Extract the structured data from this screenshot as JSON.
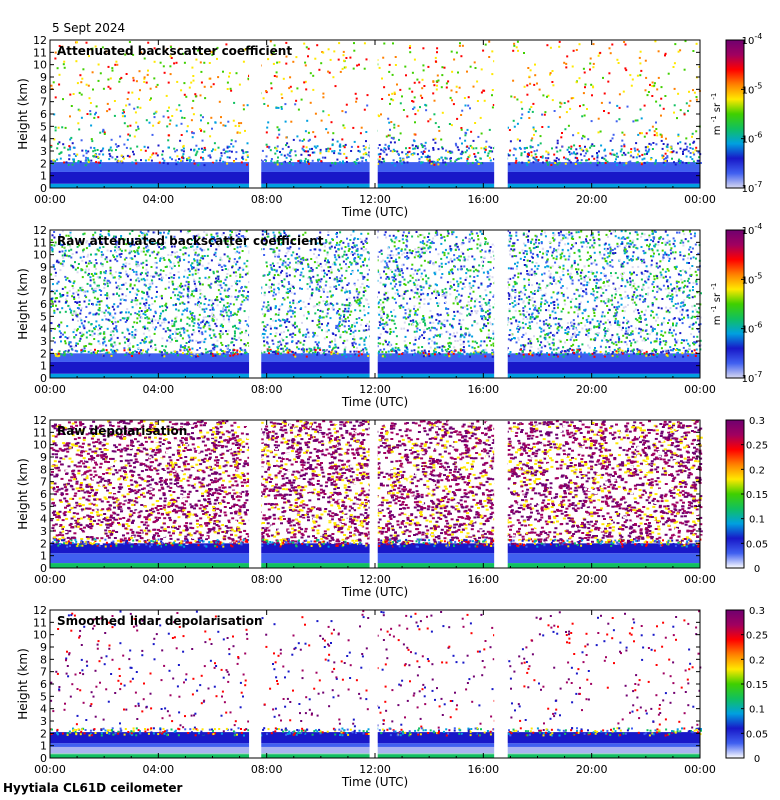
{
  "date_label": "5 Sept 2024",
  "footer": "Hyytiala CL61D ceilometer",
  "colors": {
    "palette": [
      "#ffffff",
      "#d8d8f0",
      "#4060f0",
      "#1818c8",
      "#00a0e0",
      "#10c060",
      "#40d000",
      "#ffe800",
      "#ff8000",
      "#ff0000",
      "#a00060",
      "#700070"
    ]
  },
  "chart_data": [
    {
      "type": "heatmap",
      "title": "Attenuated backscatter coefficient",
      "xlabel": "Time (UTC)",
      "ylabel": "Height (km)",
      "x_ticks": [
        "00:00",
        "04:00",
        "08:00",
        "12:00",
        "16:00",
        "20:00",
        "00:00"
      ],
      "y_ticks": [
        "0",
        "1",
        "2",
        "3",
        "4",
        "5",
        "6",
        "7",
        "8",
        "9",
        "10",
        "11",
        "12"
      ],
      "xlim_hours": [
        0,
        24
      ],
      "ylim_km": [
        0,
        12
      ],
      "data_gaps_hours": [
        [
          7.35,
          7.8
        ],
        [
          11.8,
          12.1
        ],
        [
          16.4,
          16.9
        ]
      ],
      "boundary_layer_top_km": 2.1,
      "colorbar": {
        "scale": "log",
        "range": [
          1e-07,
          0.0001
        ],
        "ticks": [
          "10",
          "10",
          "10",
          "10"
        ],
        "exps": [
          "-4",
          "-5",
          "-6",
          "-7"
        ],
        "label_m": "m",
        "label_sr": "sr",
        "label_exp": "-1"
      }
    },
    {
      "type": "heatmap",
      "title": "Raw attenuated backscatter coefficient",
      "xlabel": "Time (UTC)",
      "ylabel": "Height (km)",
      "x_ticks": [
        "00:00",
        "04:00",
        "08:00",
        "12:00",
        "16:00",
        "20:00",
        "00:00"
      ],
      "y_ticks": [
        "0",
        "1",
        "2",
        "3",
        "4",
        "5",
        "6",
        "7",
        "8",
        "9",
        "10",
        "11",
        "12"
      ],
      "xlim_hours": [
        0,
        24
      ],
      "ylim_km": [
        0,
        12
      ],
      "data_gaps_hours": [
        [
          7.35,
          7.8
        ],
        [
          11.8,
          12.1
        ],
        [
          16.4,
          16.9
        ]
      ],
      "boundary_layer_top_km": 2.0,
      "colorbar": {
        "scale": "log",
        "range": [
          1e-07,
          0.0001
        ],
        "ticks": [
          "10",
          "10",
          "10",
          "10"
        ],
        "exps": [
          "-4",
          "-5",
          "-6",
          "-7"
        ],
        "label_m": "m",
        "label_sr": "sr",
        "label_exp": "-1"
      }
    },
    {
      "type": "heatmap",
      "title": "Raw depolarisation",
      "xlabel": "Time (UTC)",
      "ylabel": "Height (km)",
      "x_ticks": [
        "00:00",
        "04:00",
        "08:00",
        "12:00",
        "16:00",
        "20:00",
        "00:00"
      ],
      "y_ticks": [
        "0",
        "1",
        "2",
        "3",
        "4",
        "5",
        "6",
        "7",
        "8",
        "9",
        "10",
        "11",
        "12"
      ],
      "xlim_hours": [
        0,
        24
      ],
      "ylim_km": [
        0,
        12
      ],
      "data_gaps_hours": [
        [
          7.35,
          7.8
        ],
        [
          11.8,
          12.1
        ],
        [
          16.4,
          16.9
        ]
      ],
      "boundary_layer_top_km": 2.0,
      "colorbar": {
        "scale": "linear",
        "range": [
          0,
          0.3
        ],
        "ticks": [
          "0.3",
          "0.25",
          "0.2",
          "0.15",
          "0.1",
          "0.05",
          "0"
        ]
      }
    },
    {
      "type": "heatmap",
      "title": "Smoothed lidar depolarisation",
      "xlabel": "Time (UTC)",
      "ylabel": "Height (km)",
      "x_ticks": [
        "00:00",
        "04:00",
        "08:00",
        "12:00",
        "16:00",
        "20:00",
        "00:00"
      ],
      "y_ticks": [
        "0",
        "1",
        "2",
        "3",
        "4",
        "5",
        "6",
        "7",
        "8",
        "9",
        "10",
        "11",
        "12"
      ],
      "xlim_hours": [
        0,
        24
      ],
      "ylim_km": [
        0,
        12
      ],
      "data_gaps_hours": [
        [
          7.35,
          7.8
        ],
        [
          11.8,
          12.1
        ],
        [
          16.4,
          16.9
        ]
      ],
      "boundary_layer_top_km": 2.1,
      "colorbar": {
        "scale": "linear",
        "range": [
          0,
          0.3
        ],
        "ticks": [
          "0.3",
          "0.25",
          "0.2",
          "0.15",
          "0.1",
          "0.05",
          "0"
        ]
      }
    }
  ]
}
